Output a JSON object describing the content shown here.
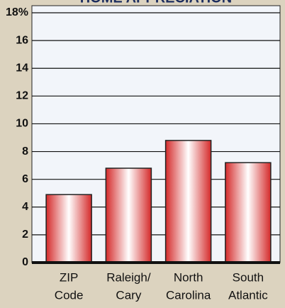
{
  "chart_data": {
    "type": "bar",
    "title": "HOME APPRECIATION",
    "categories": [
      [
        "ZIP",
        "Code"
      ],
      [
        "Raleigh/",
        "Cary"
      ],
      [
        "North",
        "Carolina"
      ],
      [
        "South",
        "Atlantic"
      ]
    ],
    "values": [
      4.9,
      6.8,
      8.8,
      7.2
    ],
    "color": "#e0403a",
    "ylim": [
      0,
      18
    ],
    "yticks": [
      0,
      2,
      4,
      6,
      8,
      10,
      12,
      14,
      16,
      {
        "value": 18,
        "label": "18%"
      }
    ],
    "grid": true
  }
}
